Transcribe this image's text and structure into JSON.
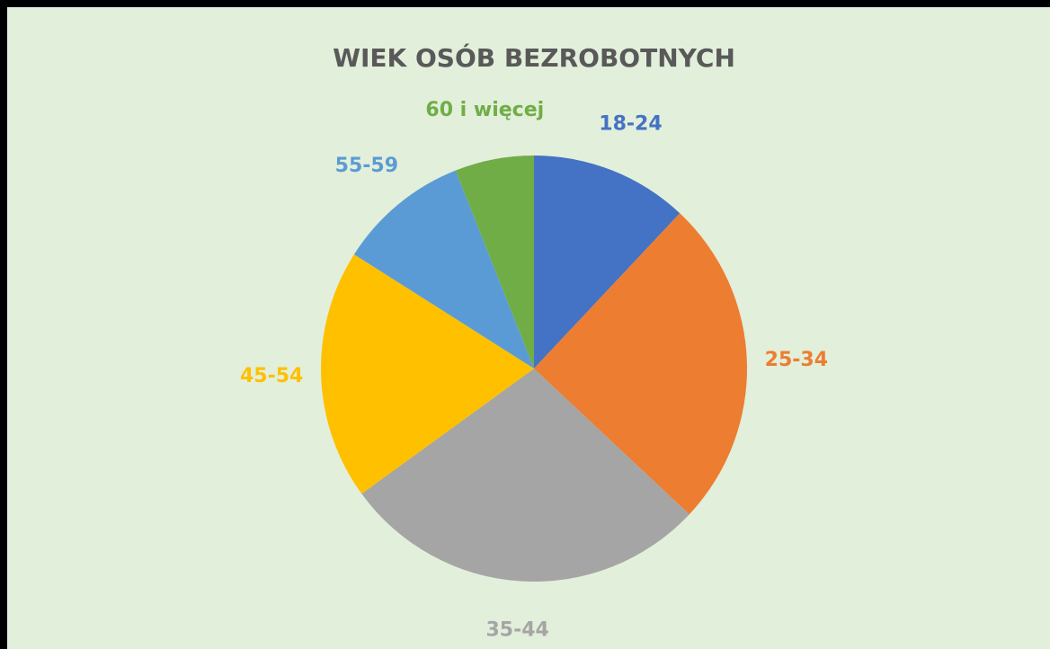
{
  "chart_data": {
    "type": "pie",
    "title": "WIEK OSÓB BEZROBOTNYCH",
    "categories": [
      "18-24",
      "25-34",
      "35-44",
      "45-54",
      "55-59",
      "60 i więcej"
    ],
    "values": [
      12,
      25,
      28,
      19,
      10,
      6
    ],
    "colors": [
      "#4472c4",
      "#ed7d31",
      "#a5a5a5",
      "#ffc000",
      "#5b9bd5",
      "#70ad47"
    ]
  }
}
